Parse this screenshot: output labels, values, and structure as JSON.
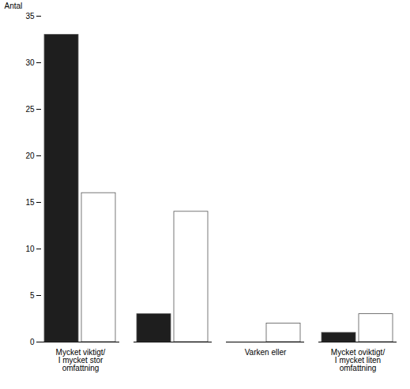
{
  "chart_data": {
    "type": "bar",
    "ylabel": "Antal",
    "categories": [
      "Mycket viktigt/\nI mycket stor\nomfattning",
      null,
      "Varken eller",
      "Mycket oviktigt/\nI mycket liten\nomfattning"
    ],
    "series": [
      {
        "color": "#1e1e1e",
        "values": [
          33,
          3,
          0,
          1
        ]
      },
      {
        "color": "#ffffff",
        "values": [
          16,
          14,
          2,
          3
        ]
      }
    ],
    "ylim": [
      0,
      35
    ],
    "yticks": [
      0,
      5,
      10,
      15,
      20,
      25,
      30,
      35
    ],
    "grid": false
  }
}
